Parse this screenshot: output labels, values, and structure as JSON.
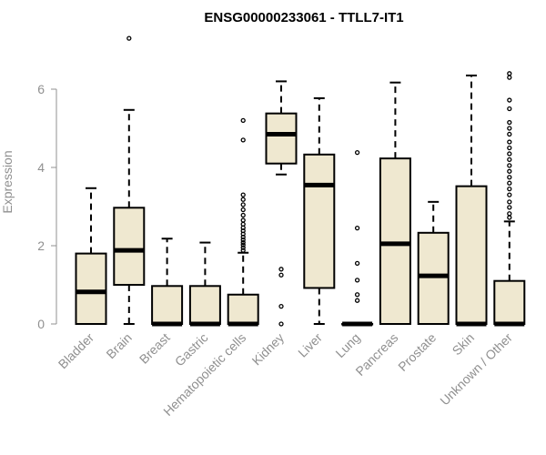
{
  "colors": {
    "box_fill": "#efe8d0",
    "stroke": "#000000",
    "axis": "#909090"
  },
  "chart_data": {
    "type": "boxplot",
    "title": "ENSG00000233061 - TTLL7-IT1",
    "xlabel": "",
    "ylabel": "Expression",
    "ylim": [
      0,
      7.4
    ],
    "yticks": [
      0,
      2,
      4,
      6
    ],
    "categories": [
      "Bladder",
      "Brain",
      "Breast",
      "Gastric",
      "Hematopoietic cells",
      "Kidney",
      "Liver",
      "Lung",
      "Pancreas",
      "Prostate",
      "Skin",
      "Unknown / Other"
    ],
    "boxes": [
      {
        "label": "Bladder",
        "whisker_low": 0,
        "q1": 0,
        "median": 0.82,
        "q3": 1.8,
        "whisker_high": 3.47,
        "outliers": []
      },
      {
        "label": "Brain",
        "whisker_low": 0,
        "q1": 1.0,
        "median": 1.88,
        "q3": 2.97,
        "whisker_high": 5.47,
        "outliers": [
          7.3
        ]
      },
      {
        "label": "Breast",
        "whisker_low": 0,
        "q1": 0,
        "median": 0,
        "q3": 0.97,
        "whisker_high": 2.18,
        "outliers": []
      },
      {
        "label": "Gastric",
        "whisker_low": 0,
        "q1": 0,
        "median": 0,
        "q3": 0.97,
        "whisker_high": 2.08,
        "outliers": []
      },
      {
        "label": "Hematopoietic cells",
        "whisker_low": 0,
        "q1": 0,
        "median": 0,
        "q3": 0.75,
        "whisker_high": 1.82,
        "outliers": [
          1.88,
          1.95,
          2.02,
          2.08,
          2.15,
          2.22,
          2.3,
          2.38,
          2.46,
          2.55,
          2.65,
          2.78,
          2.92,
          3.05,
          3.18,
          3.3,
          4.7,
          5.2
        ]
      },
      {
        "label": "Kidney",
        "whisker_low": 3.82,
        "q1": 4.1,
        "median": 4.85,
        "q3": 5.38,
        "whisker_high": 6.2,
        "outliers": [
          0,
          0.45,
          1.25,
          1.4
        ]
      },
      {
        "label": "Liver",
        "whisker_low": 0,
        "q1": 0.92,
        "median": 3.55,
        "q3": 4.33,
        "whisker_high": 5.77,
        "outliers": []
      },
      {
        "label": "Lung",
        "whisker_low": 0,
        "q1": 0,
        "median": 0,
        "q3": 0,
        "whisker_high": 0,
        "outliers": [
          0.6,
          0.75,
          1.12,
          1.55,
          2.45,
          4.38
        ]
      },
      {
        "label": "Pancreas",
        "whisker_low": 0,
        "q1": 0,
        "median": 2.05,
        "q3": 4.23,
        "whisker_high": 6.17,
        "outliers": []
      },
      {
        "label": "Prostate",
        "whisker_low": 0,
        "q1": 0,
        "median": 1.23,
        "q3": 2.33,
        "whisker_high": 3.12,
        "outliers": []
      },
      {
        "label": "Skin",
        "whisker_low": 0,
        "q1": 0,
        "median": 0,
        "q3": 3.52,
        "whisker_high": 6.35,
        "outliers": []
      },
      {
        "label": "Unknown / Other",
        "whisker_low": 0,
        "q1": 0,
        "median": 0,
        "q3": 1.1,
        "whisker_high": 2.62,
        "outliers": [
          2.72,
          2.82,
          2.98,
          3.12,
          3.3,
          3.45,
          3.6,
          3.75,
          3.9,
          4.05,
          4.2,
          4.35,
          4.5,
          4.65,
          4.85,
          5.0,
          5.15,
          5.5,
          5.72,
          6.3,
          6.4
        ]
      }
    ]
  }
}
